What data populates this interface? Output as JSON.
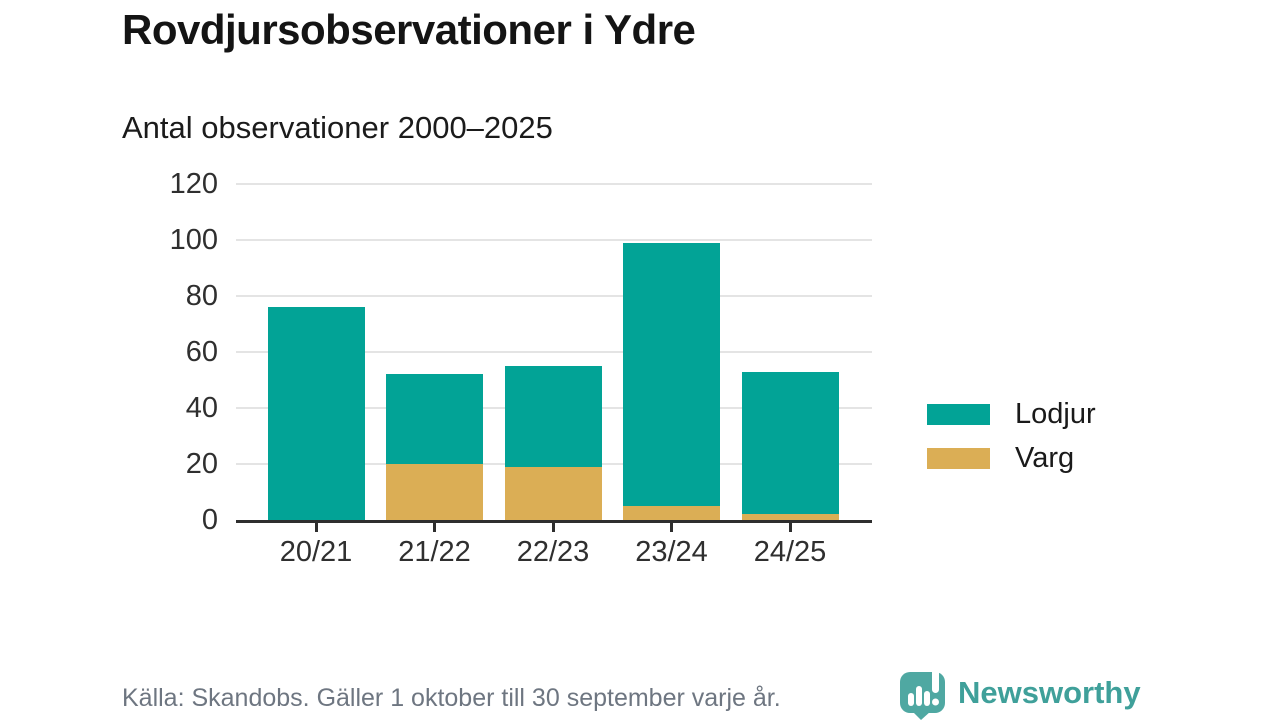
{
  "header": {
    "title": "Rovdjursobservationer i Ydre",
    "subtitle": "Antal observationer 2000–2025"
  },
  "chart_data": {
    "type": "bar",
    "stacked": true,
    "title": "Antal observationer 2000–2025",
    "categories": [
      "20/21",
      "21/22",
      "22/23",
      "23/24",
      "24/25"
    ],
    "series": [
      {
        "name": "Varg",
        "color": "#DBAE55",
        "values": [
          0,
          20,
          19,
          5,
          2
        ]
      },
      {
        "name": "Lodjur",
        "color": "#02A396",
        "values": [
          76,
          32,
          36,
          94,
          51
        ]
      }
    ],
    "stack_totals": [
      76,
      52,
      55,
      99,
      53
    ],
    "ylim": [
      0,
      120
    ],
    "yticks": [
      0,
      20,
      40,
      60,
      80,
      100,
      120
    ],
    "grid": true,
    "legend_position": "right"
  },
  "legend": {
    "items": [
      {
        "label": "Lodjur",
        "color": "#02A396"
      },
      {
        "label": "Varg",
        "color": "#DBAE55"
      }
    ]
  },
  "footer": {
    "source": "Källa: Skandobs. Gäller 1 oktober till 30 september varje år.",
    "brand": "Newsworthy"
  },
  "colors": {
    "bar_lodjur": "#02A396",
    "bar_varg": "#DBAE55",
    "axis": "#2E2E2E",
    "gridline": "#E4E4E4",
    "text": "#1A1A1A",
    "muted_text": "#6E7681",
    "brand": "#3FA09A"
  }
}
